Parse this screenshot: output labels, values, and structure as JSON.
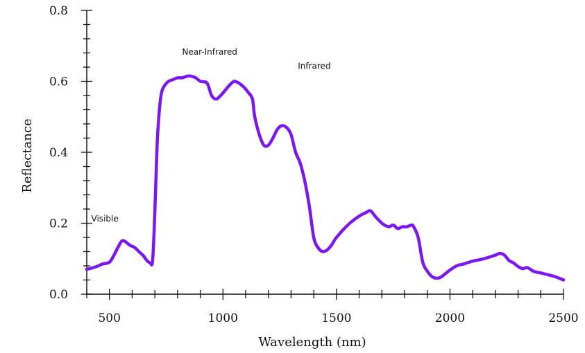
{
  "chart_data": {
    "type": "line",
    "title": "",
    "xlabel": "Wavelength (nm)",
    "ylabel": "Reflectance",
    "xlim": [
      400,
      2500
    ],
    "ylim": [
      0,
      0.8
    ],
    "x_ticks": [
      500,
      1000,
      1500,
      2000,
      2500
    ],
    "x_tick_labels": [
      "500",
      "1000",
      "1500",
      "2000",
      "2500"
    ],
    "y_ticks": [
      0,
      0.2,
      0.4,
      0.6,
      0.8
    ],
    "y_tick_labels": [
      "0.0",
      "0.2",
      "0.4",
      "0.6",
      "0.8"
    ],
    "grid": false,
    "line_color": "#7a18f0",
    "annotations": [
      {
        "text": "Visible",
        "x": 420,
        "y": 0.205
      },
      {
        "text": "Near-Infrared",
        "x": 820,
        "y": 0.675
      },
      {
        "text": "Infrared",
        "x": 1330,
        "y": 0.635
      }
    ],
    "series": [
      {
        "name": "",
        "x": [
          400,
          440,
          470,
          500,
          520,
          540,
          555,
          570,
          590,
          610,
          630,
          650,
          665,
          680,
          690,
          700,
          710,
          720,
          730,
          745,
          760,
          780,
          800,
          820,
          850,
          880,
          900,
          930,
          950,
          970,
          990,
          1010,
          1030,
          1050,
          1070,
          1090,
          1110,
          1130,
          1140,
          1160,
          1180,
          1200,
          1220,
          1240,
          1260,
          1280,
          1300,
          1320,
          1340,
          1360,
          1380,
          1400,
          1420,
          1440,
          1460,
          1480,
          1500,
          1550,
          1600,
          1630,
          1650,
          1670,
          1700,
          1730,
          1750,
          1770,
          1790,
          1810,
          1830,
          1840,
          1860,
          1880,
          1900,
          1920,
          1940,
          1960,
          1980,
          2000,
          2030,
          2060,
          2100,
          2150,
          2200,
          2220,
          2240,
          2260,
          2280,
          2300,
          2320,
          2340,
          2370,
          2400,
          2430,
          2460,
          2500
        ],
        "y": [
          0.07,
          0.077,
          0.085,
          0.09,
          0.11,
          0.135,
          0.15,
          0.148,
          0.138,
          0.132,
          0.12,
          0.108,
          0.095,
          0.088,
          0.095,
          0.23,
          0.42,
          0.52,
          0.57,
          0.59,
          0.6,
          0.605,
          0.61,
          0.61,
          0.615,
          0.61,
          0.6,
          0.595,
          0.56,
          0.55,
          0.56,
          0.575,
          0.59,
          0.6,
          0.595,
          0.585,
          0.57,
          0.55,
          0.5,
          0.45,
          0.42,
          0.42,
          0.44,
          0.465,
          0.475,
          0.47,
          0.45,
          0.4,
          0.37,
          0.32,
          0.25,
          0.16,
          0.13,
          0.12,
          0.125,
          0.14,
          0.16,
          0.195,
          0.22,
          0.23,
          0.235,
          0.22,
          0.2,
          0.19,
          0.195,
          0.185,
          0.19,
          0.19,
          0.195,
          0.19,
          0.16,
          0.09,
          0.065,
          0.05,
          0.045,
          0.048,
          0.058,
          0.068,
          0.08,
          0.085,
          0.093,
          0.1,
          0.11,
          0.115,
          0.11,
          0.095,
          0.088,
          0.078,
          0.072,
          0.075,
          0.064,
          0.06,
          0.055,
          0.05,
          0.04
        ]
      }
    ]
  }
}
